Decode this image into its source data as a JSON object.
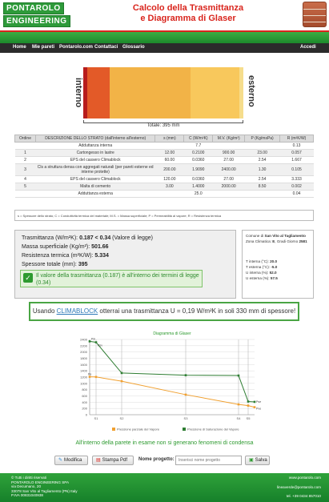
{
  "header": {
    "logo_line1": "PONTAROLO",
    "logo_line2": "ENGINEERING",
    "title_line1": "Calcolo della Trasmittanza",
    "title_line2": "e Diagramma di Glaser"
  },
  "nav": {
    "items": [
      "Home",
      "Mie pareti",
      "Pontarolo.com",
      "Contattaci",
      "Glossario"
    ],
    "right": "Accedi"
  },
  "drawing": {
    "inside_label": "interno",
    "outside_label": "esterno",
    "total_label": "Totale: 395 mm",
    "layer_colors": [
      "#b71c1c",
      "#e35a28",
      "#e37d2c",
      "#f2b347",
      "#f8c85c",
      "#f6dd8c"
    ]
  },
  "table": {
    "headers": [
      "Ordine",
      "DESCRIZIONE DELLO STRATO (dall'interno all'esterno)",
      "s (mm)",
      "C (W/m²K)",
      "M.V. (Kg/m³)",
      "P (Kg/msPa)",
      "R (m²K/W)"
    ],
    "rows": [
      [
        "",
        "Adduttanza interna",
        "",
        "7.7",
        "",
        "",
        "0.13"
      ],
      [
        "1",
        "Cartongesso in lastre",
        "12.00",
        "0.2100",
        "900.00",
        "23.00",
        "0.057"
      ],
      [
        "2",
        "EPS del cassero Climablock",
        "60.00",
        "0.0360",
        "27.00",
        "2.54",
        "1.667"
      ],
      [
        "3",
        "Cls a struttura densa con aggregati naturali (per pareti esterne ed interne protette)",
        "200.00",
        "1.9090",
        "2400.00",
        "1.30",
        "0.105"
      ],
      [
        "4",
        "EPS del cassero Climablock",
        "120.00",
        "0.0360",
        "27.00",
        "2.54",
        "3.333"
      ],
      [
        "5",
        "Malta di cemento",
        "3.00",
        "1.4000",
        "2000.00",
        "8.50",
        "0.002"
      ],
      [
        "",
        "Adduttanza esterna",
        "",
        "25.0",
        "",
        "",
        "0.04"
      ]
    ],
    "legend": "s = Spessore dello strato; C = Conduttività termica del materiale; M.S. = Massa superficiale; P = Permeabilità al vapore; R = Resistenza termica"
  },
  "results": {
    "trasmittanza_label": "Trasmittanza (W/m²K):",
    "trasmittanza_value": "0.187 < 0.34",
    "trasmittanza_note": "(Valore di legge)",
    "massa_label": "Massa superficiale (Kg/m²):",
    "massa_value": "501.66",
    "resistenza_label": "Resistenza termica (m²K/W):",
    "resistenza_value": "5.334",
    "spessore_label": "Spessore totale (mm):",
    "spessore_value": "395",
    "ok_message": "Il valore della trasmittanza (0.187) è all'interno dei termini di legge (0.34)"
  },
  "climate": {
    "comune_label": "Comune di",
    "comune_value": "San Vito al Tagliamento",
    "zona_label": "Zona Climatica:",
    "zona_value": "E",
    "gradi_label": "Gradi Giorno",
    "gradi_value": "2581",
    "t_int_label": "T interna (°C):",
    "t_int_value": "20.0",
    "t_ext_label": "T esterna (°C):",
    "t_ext_value": "-5.0",
    "u_int_label": "U interna (%):",
    "u_int_value": "52.0",
    "u_ext_label": "U esterna (%):",
    "u_ext_value": "57.5"
  },
  "banner": {
    "pre": "Usando ",
    "link": "CLIMABLOCK",
    "post": " otterrai una trasmittanza U = 0,19 W/m²K in soli 330 mm di spessore!"
  },
  "chart_data": {
    "type": "line",
    "title": "Diagramma di Glaser",
    "x": [
      "Pint",
      "S1",
      "S2",
      "S3",
      "S4",
      "S5",
      "Pest"
    ],
    "ylim": [
      0,
      2400
    ],
    "yticks": [
      0,
      200,
      400,
      600,
      800,
      1000,
      1200,
      1400,
      1600,
      1800,
      2000,
      2200,
      2400
    ],
    "xticks": [
      "S1",
      "S2",
      "S3",
      "S4",
      "S5"
    ],
    "series": [
      {
        "name": "Pressione parziale del Vapore",
        "color": "#f0a030",
        "values": [
          1210,
          1205,
          1070,
          640,
          330,
          290,
          240
        ]
      },
      {
        "name": "Pressione di Saturazione del Vapore",
        "color": "#2e7d32",
        "values": [
          2340,
          2310,
          1330,
          1260,
          1250,
          420,
          410
        ]
      }
    ],
    "point_labels": [
      "Psi",
      "Psv",
      "Pe",
      "Pse",
      "Pve"
    ]
  },
  "condensation_message": "All'interno della parete in esame non si generano fenomeni di condensa",
  "actions": {
    "modifica": "Modifica",
    "stampa": "Stampa Pdf",
    "project_label": "Nome progetto:",
    "project_placeholder": "Inserisci nome progetto",
    "salva": "Salva"
  },
  "footer": {
    "copyright": "© Tutti i diritti riservati",
    "company": "PONTAROLO ENGINEERING SPA",
    "address": "via Decumano, 20",
    "city": "33078 San Vito al Tagliamento (PN) Italy",
    "piva": "P.IVA 00831040938",
    "site": "www.pontarolo.com",
    "email": "lineaverde@pontarolo.com",
    "phone": "tel. +39 0434 857010"
  }
}
